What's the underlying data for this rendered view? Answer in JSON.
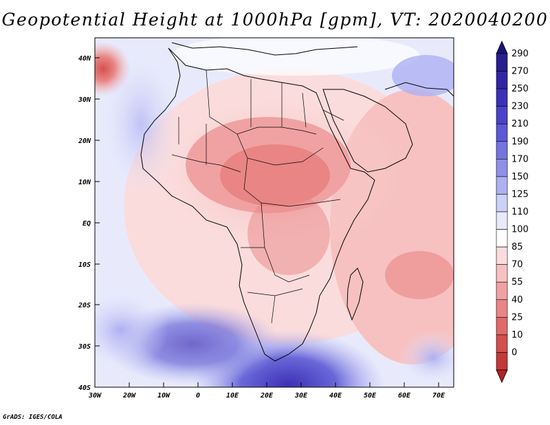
{
  "title": "Geopotential Height at 1000hPa [gpm], VT: 2020040200",
  "credit": "GrADS: IGES/COLA",
  "lat_labels": [
    "40N",
    "30N",
    "20N",
    "10N",
    "EQ",
    "10S",
    "20S",
    "30S",
    "40S"
  ],
  "lon_labels": [
    "30W",
    "20W",
    "10W",
    "0",
    "10E",
    "20E",
    "30E",
    "40E",
    "50E",
    "60E",
    "70E"
  ],
  "colorbar": {
    "levels": [
      {
        "label": "290",
        "color": "#2a1e8e"
      },
      {
        "label": "270",
        "color": "#3424a6"
      },
      {
        "label": "250",
        "color": "#3d30b8"
      },
      {
        "label": "230",
        "color": "#4a42c8"
      },
      {
        "label": "210",
        "color": "#5c58d6"
      },
      {
        "label": "190",
        "color": "#7474e0"
      },
      {
        "label": "170",
        "color": "#8e90ea"
      },
      {
        "label": "150",
        "color": "#aeb0f2"
      },
      {
        "label": "125",
        "color": "#cdd0f8"
      },
      {
        "label": "110",
        "color": "#e8eafc"
      },
      {
        "label": "100",
        "color": "#ffffff"
      },
      {
        "label": "85",
        "color": "#fbdcdc"
      },
      {
        "label": "70",
        "color": "#f7c1c1"
      },
      {
        "label": "55",
        "color": "#f0a2a2"
      },
      {
        "label": "40",
        "color": "#e98585"
      },
      {
        "label": "25",
        "color": "#e06a6a"
      },
      {
        "label": "10",
        "color": "#d44e4e"
      },
      {
        "label": "0",
        "color": "#c43838"
      }
    ],
    "top_arrow_color": "#1a137a",
    "bottom_arrow_color": "#b22222"
  },
  "map_extent": {
    "lon_min": -30,
    "lon_max": 75,
    "lat_min": -40,
    "lat_max": 44
  }
}
